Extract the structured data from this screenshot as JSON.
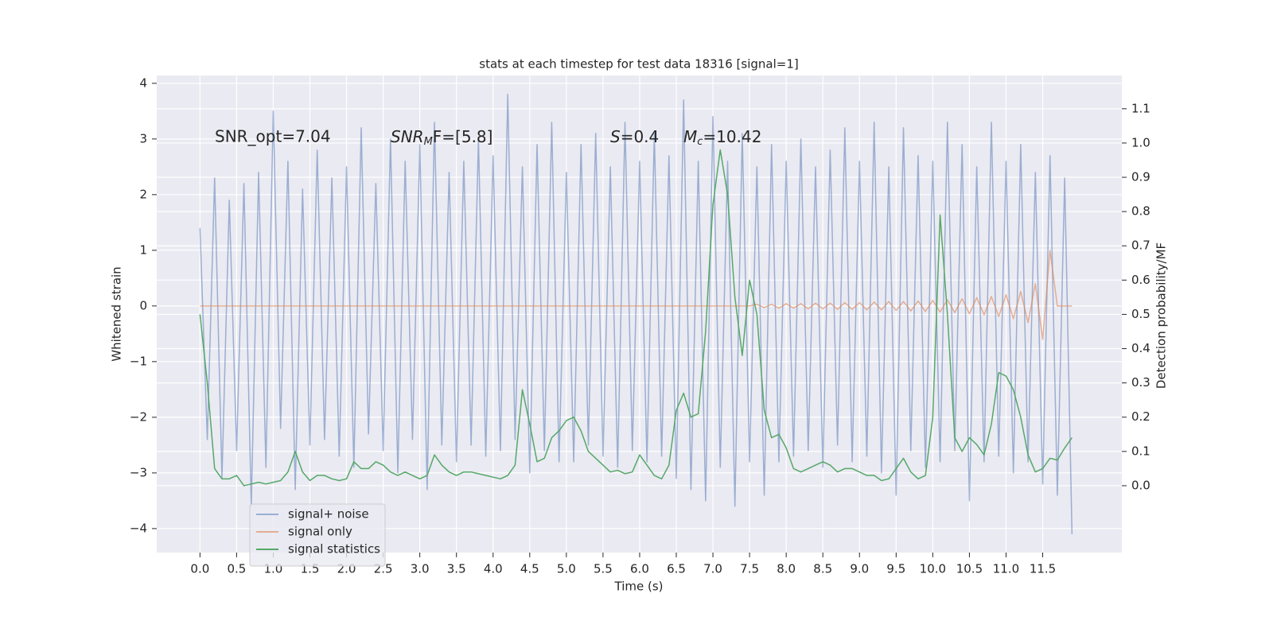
{
  "chart_data": {
    "type": "line",
    "title": "stats at each timestep for test data 18316 [signal=1]",
    "xlabel": "Time (s)",
    "ylabel": "Whitened strain",
    "y2label": "Detection probability/MF",
    "annotations": [
      {
        "text": "SNR_opt=7.04"
      },
      {
        "italic": "SNR",
        "sub": "M",
        "text": "F=[5.8]"
      },
      {
        "italic": "S",
        "text": "=0.4"
      },
      {
        "italic": "M",
        "sub": "c",
        "text": "=10.42"
      }
    ],
    "grid": true,
    "legend": "lower left",
    "xlim": [
      -0.59,
      12.58
    ],
    "ylim": [
      -4.43,
      4.14
    ],
    "y2lim": [
      -0.195,
      1.197
    ],
    "xticks": [
      {
        "value": 0,
        "label": "0.0"
      },
      {
        "value": 0.5,
        "label": "0.5"
      },
      {
        "value": 1,
        "label": "1.0"
      },
      {
        "value": 1.5,
        "label": "1.5"
      },
      {
        "value": 2,
        "label": "2.0"
      },
      {
        "value": 2.5,
        "label": "2.5"
      },
      {
        "value": 3,
        "label": "3.0"
      },
      {
        "value": 3.5,
        "label": "3.5"
      },
      {
        "value": 4,
        "label": "4.0"
      },
      {
        "value": 4.5,
        "label": "4.5"
      },
      {
        "value": 5,
        "label": "5.0"
      },
      {
        "value": 5.5,
        "label": "5.5"
      },
      {
        "value": 6,
        "label": "6.0"
      },
      {
        "value": 6.5,
        "label": "6.5"
      },
      {
        "value": 7,
        "label": "7.0"
      },
      {
        "value": 7.5,
        "label": "7.5"
      },
      {
        "value": 8,
        "label": "8.0"
      },
      {
        "value": 8.5,
        "label": "8.5"
      },
      {
        "value": 9,
        "label": "9.0"
      },
      {
        "value": 9.5,
        "label": "9.5"
      },
      {
        "value": 10,
        "label": "10.0"
      },
      {
        "value": 10.5,
        "label": "10.5"
      },
      {
        "value": 11,
        "label": "11.0"
      },
      {
        "value": 11.5,
        "label": "11.5"
      }
    ],
    "yticks": [
      {
        "value": -4,
        "label": "−4"
      },
      {
        "value": -3,
        "label": "−3"
      },
      {
        "value": -2,
        "label": "−2"
      },
      {
        "value": -1,
        "label": "−1"
      },
      0,
      1,
      2,
      3,
      4
    ],
    "y2ticks": [
      {
        "value": 0,
        "label": "0.0"
      },
      0.1,
      0.2,
      0.3,
      0.4,
      0.5,
      0.6,
      0.7,
      0.8,
      0.9,
      {
        "value": 1,
        "label": "1.0"
      },
      1.1
    ],
    "x": [
      0,
      0.1,
      0.2,
      0.3,
      0.4,
      0.5,
      0.6,
      0.7,
      0.8,
      0.9,
      1,
      1.1,
      1.2,
      1.3,
      1.4,
      1.5,
      1.6,
      1.7,
      1.8,
      1.9,
      2,
      2.1,
      2.2,
      2.3,
      2.4,
      2.5,
      2.6,
      2.7,
      2.8,
      2.9,
      3,
      3.1,
      3.2,
      3.3,
      3.4,
      3.5,
      3.6,
      3.7,
      3.8,
      3.9,
      4,
      4.1,
      4.2,
      4.3,
      4.4,
      4.5,
      4.6,
      4.7,
      4.8,
      4.9,
      5,
      5.1,
      5.2,
      5.3,
      5.4,
      5.5,
      5.6,
      5.7,
      5.8,
      5.9,
      6,
      6.1,
      6.2,
      6.3,
      6.4,
      6.5,
      6.6,
      6.7,
      6.8,
      6.9,
      7,
      7.1,
      7.2,
      7.3,
      7.4,
      7.5,
      7.6,
      7.7,
      7.8,
      7.9,
      8,
      8.1,
      8.2,
      8.3,
      8.4,
      8.5,
      8.6,
      8.7,
      8.8,
      8.9,
      9,
      9.1,
      9.2,
      9.3,
      9.4,
      9.5,
      9.6,
      9.7,
      9.8,
      9.9,
      10,
      10.1,
      10.2,
      10.3,
      10.4,
      10.5,
      10.6,
      10.7,
      10.8,
      10.9,
      11,
      11.1,
      11.2,
      11.3,
      11.4,
      11.5,
      11.6,
      11.7,
      11.8,
      11.9
    ],
    "series": [
      {
        "name": "signal+ noise",
        "color": "#4c72b0",
        "opacity": 0.5,
        "values": [
          1.4,
          -2.4,
          2.3,
          -3.1,
          1.9,
          -2.6,
          2.2,
          -3.6,
          2.4,
          -2.9,
          3.5,
          -2.2,
          2.6,
          -3.3,
          2.1,
          -2.5,
          2.8,
          -2.4,
          2.3,
          -2.7,
          2.5,
          -2.9,
          3.2,
          -2.3,
          2.2,
          -2.6,
          3.0,
          -3.0,
          2.6,
          -2.4,
          2.9,
          -3.3,
          3.3,
          -2.5,
          2.4,
          -2.8,
          2.6,
          -2.5,
          3.0,
          -2.7,
          2.7,
          -2.6,
          3.8,
          -2.4,
          2.5,
          -3.0,
          2.9,
          -2.6,
          3.3,
          -2.8,
          2.4,
          -2.8,
          2.9,
          -2.5,
          3.1,
          -2.7,
          2.5,
          -2.9,
          3.3,
          -2.6,
          2.6,
          -2.8,
          3.1,
          -2.7,
          2.7,
          -3.1,
          3.7,
          -3.3,
          2.6,
          -3.5,
          3.4,
          -2.9,
          2.6,
          -3.6,
          3.1,
          -2.8,
          2.5,
          -3.4,
          2.9,
          -2.8,
          2.6,
          -2.7,
          3.0,
          -2.6,
          2.5,
          -2.9,
          2.8,
          -2.5,
          3.2,
          -2.8,
          2.6,
          -2.7,
          3.3,
          -3.0,
          2.5,
          -3.4,
          3.2,
          -2.6,
          2.7,
          -2.9,
          2.6,
          -2.8,
          3.3,
          -2.6,
          2.9,
          -3.5,
          2.5,
          -2.8,
          3.3,
          -2.7,
          2.6,
          -3.0,
          2.9,
          -2.8,
          2.4,
          -3.2,
          2.7,
          -3.4,
          2.3,
          -4.1
        ]
      },
      {
        "name": "signal only",
        "color": "#dd8452",
        "opacity": 0.6,
        "values": [
          0,
          0,
          0,
          0,
          0,
          0,
          0,
          0,
          0,
          0,
          0,
          0,
          0,
          0,
          0,
          0,
          0,
          0,
          0,
          0,
          0,
          0,
          0,
          0,
          0,
          0,
          0,
          0,
          0,
          0,
          0,
          0,
          0,
          0,
          0,
          0,
          0,
          0,
          0,
          0,
          0,
          0,
          0,
          0,
          0,
          0,
          0,
          0,
          0,
          0,
          0,
          0,
          0,
          0,
          0,
          0,
          0,
          0,
          0,
          0,
          0,
          0,
          0,
          0,
          0,
          0,
          0,
          0,
          0,
          0,
          0,
          0,
          0,
          0,
          0,
          0,
          0.03,
          -0.03,
          0.03,
          -0.04,
          0.04,
          -0.04,
          0.04,
          -0.05,
          0.05,
          -0.05,
          0.05,
          -0.06,
          0.06,
          -0.06,
          0.06,
          -0.07,
          0.07,
          -0.07,
          0.08,
          -0.08,
          0.08,
          -0.09,
          0.09,
          -0.1,
          0.1,
          -0.11,
          0.11,
          -0.12,
          0.13,
          -0.14,
          0.15,
          -0.16,
          0.17,
          -0.19,
          0.2,
          -0.23,
          0.26,
          -0.3,
          0.4,
          -0.6,
          1.0,
          0,
          0,
          0
        ]
      },
      {
        "name": "signal statistics",
        "color": "#55a868",
        "opacity": 1,
        "axis": "y2",
        "values": [
          0.5,
          0.3,
          0.05,
          0.02,
          0.02,
          0.03,
          0.0,
          0.005,
          0.01,
          0.005,
          0.01,
          0.015,
          0.04,
          0.1,
          0.04,
          0.015,
          0.03,
          0.03,
          0.02,
          0.015,
          0.02,
          0.07,
          0.05,
          0.05,
          0.07,
          0.06,
          0.04,
          0.03,
          0.04,
          0.03,
          0.02,
          0.03,
          0.09,
          0.06,
          0.04,
          0.03,
          0.04,
          0.04,
          0.035,
          0.03,
          0.025,
          0.02,
          0.03,
          0.06,
          0.28,
          0.18,
          0.07,
          0.08,
          0.14,
          0.16,
          0.19,
          0.2,
          0.16,
          0.1,
          0.08,
          0.06,
          0.04,
          0.045,
          0.035,
          0.04,
          0.09,
          0.06,
          0.03,
          0.02,
          0.06,
          0.22,
          0.27,
          0.2,
          0.21,
          0.45,
          0.82,
          0.98,
          0.85,
          0.55,
          0.38,
          0.6,
          0.5,
          0.22,
          0.14,
          0.15,
          0.11,
          0.05,
          0.04,
          0.05,
          0.06,
          0.07,
          0.06,
          0.04,
          0.05,
          0.05,
          0.04,
          0.03,
          0.03,
          0.015,
          0.02,
          0.05,
          0.08,
          0.04,
          0.02,
          0.03,
          0.2,
          0.79,
          0.5,
          0.14,
          0.1,
          0.14,
          0.12,
          0.09,
          0.18,
          0.33,
          0.32,
          0.28,
          0.2,
          0.09,
          0.04,
          0.05,
          0.08,
          0.075,
          0.11,
          0.14
        ]
      }
    ]
  }
}
